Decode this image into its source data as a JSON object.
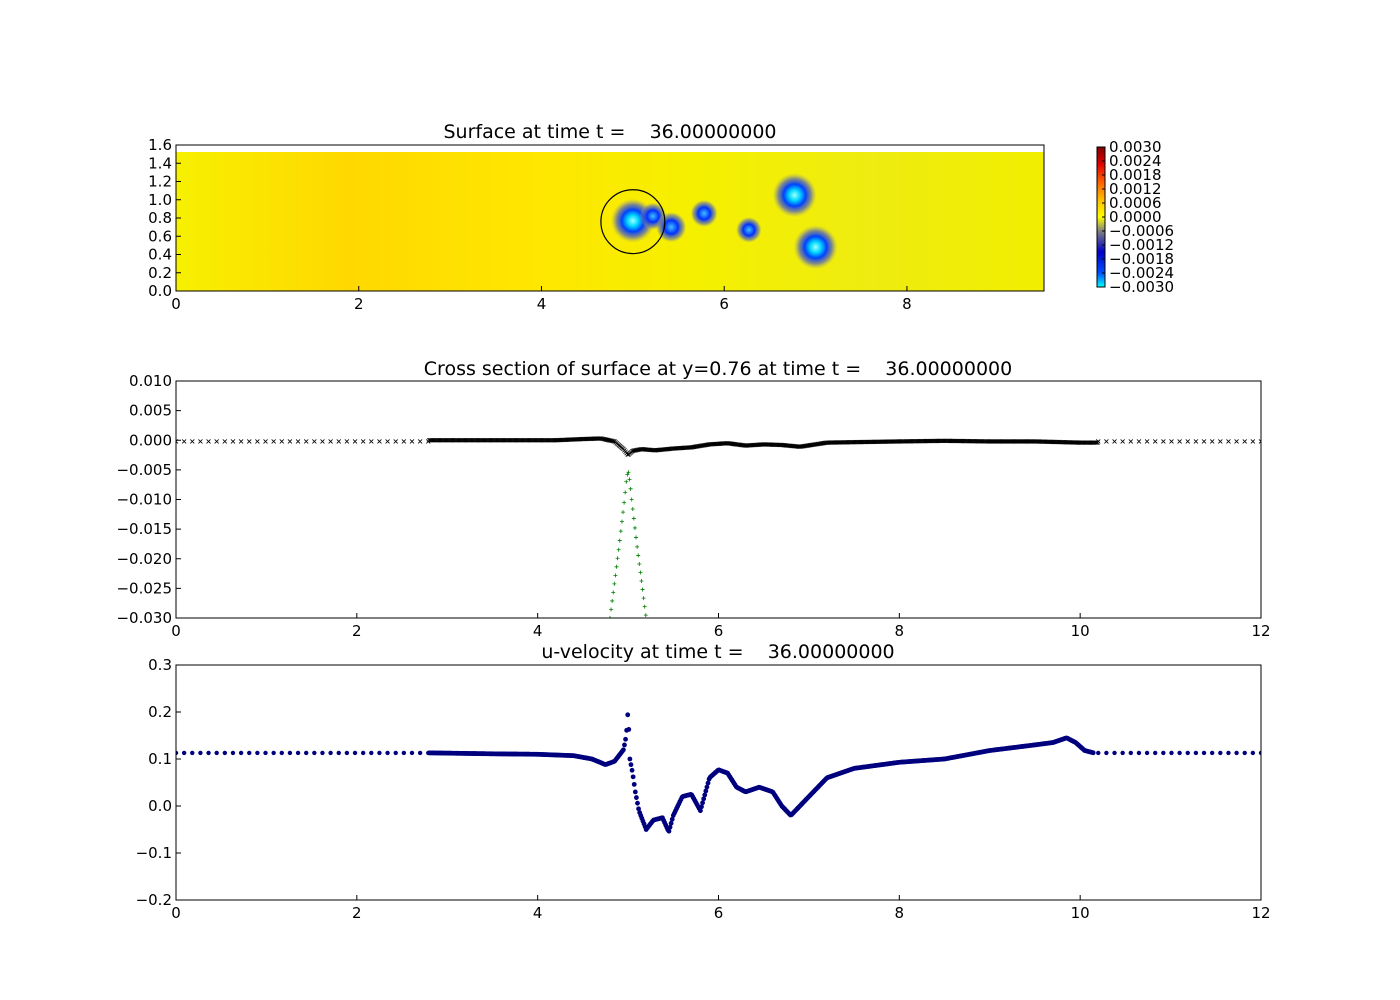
{
  "chart_data": [
    {
      "type": "heatmap",
      "title": "Surface at time t =    36.00000000",
      "xlim": [
        0,
        9.5
      ],
      "ylim": [
        0,
        1.6
      ],
      "xticks": [
        "0",
        "2",
        "4",
        "6",
        "8"
      ],
      "yticks": [
        "0.0",
        "0.2",
        "0.4",
        "0.6",
        "0.8",
        "1.0",
        "1.2",
        "1.4",
        "1.6"
      ],
      "colorbar": {
        "min": -0.003,
        "max": 0.003,
        "ticks": [
          "0.0030",
          "0.0024",
          "0.0018",
          "0.0012",
          "0.0006",
          "0.0000",
          "−0.0006",
          "−0.0012",
          "−0.0018",
          "−0.0024",
          "−0.0030"
        ],
        "colormap": "jet-like (cyan-blue-gray-yellow-red-darkred)"
      },
      "background_value": 0.0003,
      "depressions": [
        {
          "x": 5.0,
          "y": 0.77,
          "value": -0.003
        },
        {
          "x": 5.22,
          "y": 0.82,
          "value": -0.0022
        },
        {
          "x": 5.42,
          "y": 0.7,
          "value": -0.0024
        },
        {
          "x": 5.78,
          "y": 0.85,
          "value": -0.0022
        },
        {
          "x": 6.27,
          "y": 0.67,
          "value": -0.0021
        },
        {
          "x": 6.77,
          "y": 1.05,
          "value": -0.003
        },
        {
          "x": 7.0,
          "y": 0.48,
          "value": -0.003
        }
      ],
      "obstacle_circle": {
        "x": 5.0,
        "y": 0.76,
        "r": 0.35
      }
    },
    {
      "type": "scatter",
      "title": "Cross section of surface at y=0.76 at time t =    36.00000000",
      "xlim": [
        0,
        12
      ],
      "ylim": [
        -0.03,
        0.01
      ],
      "xticks": [
        "0",
        "2",
        "4",
        "6",
        "8",
        "10",
        "12"
      ],
      "yticks": [
        "0.010",
        "0.005",
        "0.000",
        "−0.005",
        "−0.010",
        "−0.015",
        "−0.020",
        "−0.025",
        "−0.030"
      ],
      "series": [
        {
          "marker": "x",
          "color": "#000000",
          "x": [
            2.8,
            3.5,
            4.2,
            4.5,
            4.7,
            4.85,
            4.95,
            5.0,
            5.05,
            5.15,
            5.3,
            5.5,
            5.7,
            5.9,
            6.1,
            6.3,
            6.5,
            6.7,
            6.9,
            7.2,
            7.6,
            8.0,
            8.5,
            9.0,
            9.5,
            10.0,
            10.2
          ],
          "y": [
            0.0,
            0.0,
            0.0,
            0.0002,
            0.0003,
            -0.0002,
            -0.0015,
            -0.0025,
            -0.0018,
            -0.0015,
            -0.0017,
            -0.0014,
            -0.0012,
            -0.0007,
            -0.0005,
            -0.0009,
            -0.0007,
            -0.0008,
            -0.0011,
            -0.0004,
            -0.0003,
            -0.0002,
            -0.0001,
            -0.0002,
            -0.0002,
            -0.0004,
            -0.0004
          ]
        },
        {
          "marker": "+",
          "color": "#007f00",
          "x": [
            4.8,
            4.85,
            4.9,
            4.93,
            4.96,
            4.98,
            5.0,
            5.02,
            5.04,
            5.07,
            5.1,
            5.15,
            5.2
          ],
          "y": [
            -0.03,
            -0.024,
            -0.018,
            -0.014,
            -0.01,
            -0.007,
            -0.005,
            -0.007,
            -0.01,
            -0.014,
            -0.018,
            -0.024,
            -0.03
          ]
        }
      ],
      "sparse_far_field": {
        "x_ranges": [
          [
            0,
            2.8
          ],
          [
            10.2,
            12
          ]
        ],
        "y": -0.0002
      }
    },
    {
      "type": "scatter",
      "title": "u-velocity at time t =    36.00000000",
      "xlim": [
        0,
        12
      ],
      "ylim": [
        -0.2,
        0.3
      ],
      "xticks": [
        "0",
        "2",
        "4",
        "6",
        "8",
        "10",
        "12"
      ],
      "yticks": [
        "0.3",
        "0.2",
        "0.1",
        "0.0",
        "−0.1",
        "−0.2"
      ],
      "series": [
        {
          "marker": "o",
          "color": "#00007f",
          "x": [
            2.8,
            3.5,
            4.0,
            4.4,
            4.6,
            4.75,
            4.85,
            4.95,
            4.98,
            5.0,
            5.02,
            5.05,
            5.08,
            5.12,
            5.2,
            5.28,
            5.38,
            5.45,
            5.5,
            5.6,
            5.7,
            5.8,
            5.9,
            6.0,
            6.1,
            6.2,
            6.3,
            6.45,
            6.6,
            6.7,
            6.8,
            7.0,
            7.2,
            7.5,
            8.0,
            8.5,
            9.0,
            9.5,
            9.7,
            9.85,
            9.95,
            10.05,
            10.15
          ],
          "y": [
            0.113,
            0.111,
            0.11,
            0.107,
            0.1,
            0.088,
            0.095,
            0.12,
            0.15,
            0.205,
            0.1,
            0.07,
            0.03,
            -0.01,
            -0.05,
            -0.03,
            -0.025,
            -0.055,
            -0.02,
            0.02,
            0.025,
            -0.01,
            0.06,
            0.077,
            0.07,
            0.04,
            0.03,
            0.04,
            0.03,
            0.0,
            -0.02,
            0.02,
            0.06,
            0.08,
            0.093,
            0.1,
            0.118,
            0.13,
            0.135,
            0.145,
            0.135,
            0.118,
            0.113
          ]
        }
      ],
      "sparse_far_field": {
        "x_ranges": [
          [
            0,
            2.8
          ],
          [
            10.2,
            12
          ]
        ],
        "y": 0.113
      }
    }
  ]
}
